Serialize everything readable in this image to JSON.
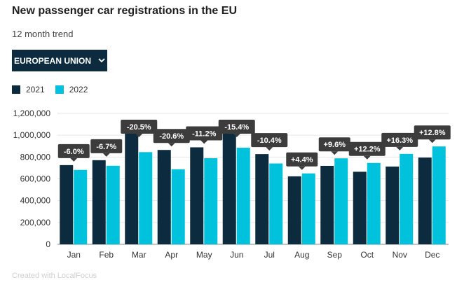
{
  "header": {
    "title": "New passenger car registrations in the EU",
    "subtitle": "12 month trend"
  },
  "dropdown": {
    "label": "EUROPEAN UNION"
  },
  "footer": {
    "credit": "Created with LocalFocus"
  },
  "colors": {
    "series_2021": "#0d2b3e",
    "series_2022": "#00c2dc",
    "label_bg": "#3c3c3c",
    "grid": "#e6e6e6"
  },
  "chart_data": {
    "type": "bar",
    "title": "New passenger car registrations in the EU",
    "subtitle": "12 month trend",
    "xlabel": "",
    "ylabel": "",
    "ylim": [
      0,
      1200000
    ],
    "yticks": [
      0,
      200000,
      400000,
      600000,
      800000,
      1000000,
      1200000
    ],
    "ytick_labels": [
      "0",
      "200,000",
      "400,000",
      "600,000",
      "800,000",
      "1,000,000",
      "1,200,000"
    ],
    "categories": [
      "Jan",
      "Feb",
      "Mar",
      "Apr",
      "May",
      "Jun",
      "Jul",
      "Aug",
      "Sep",
      "Oct",
      "Nov",
      "Dec"
    ],
    "series": [
      {
        "name": "2021",
        "values": [
          726000,
          771000,
          1062000,
          865000,
          889000,
          1046000,
          827000,
          623000,
          719000,
          665000,
          713000,
          795000
        ]
      },
      {
        "name": "2022",
        "values": [
          682000,
          720000,
          845000,
          688000,
          789000,
          885000,
          741000,
          650000,
          788000,
          746000,
          829000,
          897000
        ]
      }
    ],
    "change_labels": [
      "-6.0%",
      "-6.7%",
      "-20.5%",
      "-20.6%",
      "-11.2%",
      "-15.4%",
      "-10.4%",
      "+4.4%",
      "+9.6%",
      "+12.2%",
      "+16.3%",
      "+12.8%"
    ],
    "legend": [
      "2021",
      "2022"
    ],
    "legend_position": "top-left",
    "grid": true
  }
}
